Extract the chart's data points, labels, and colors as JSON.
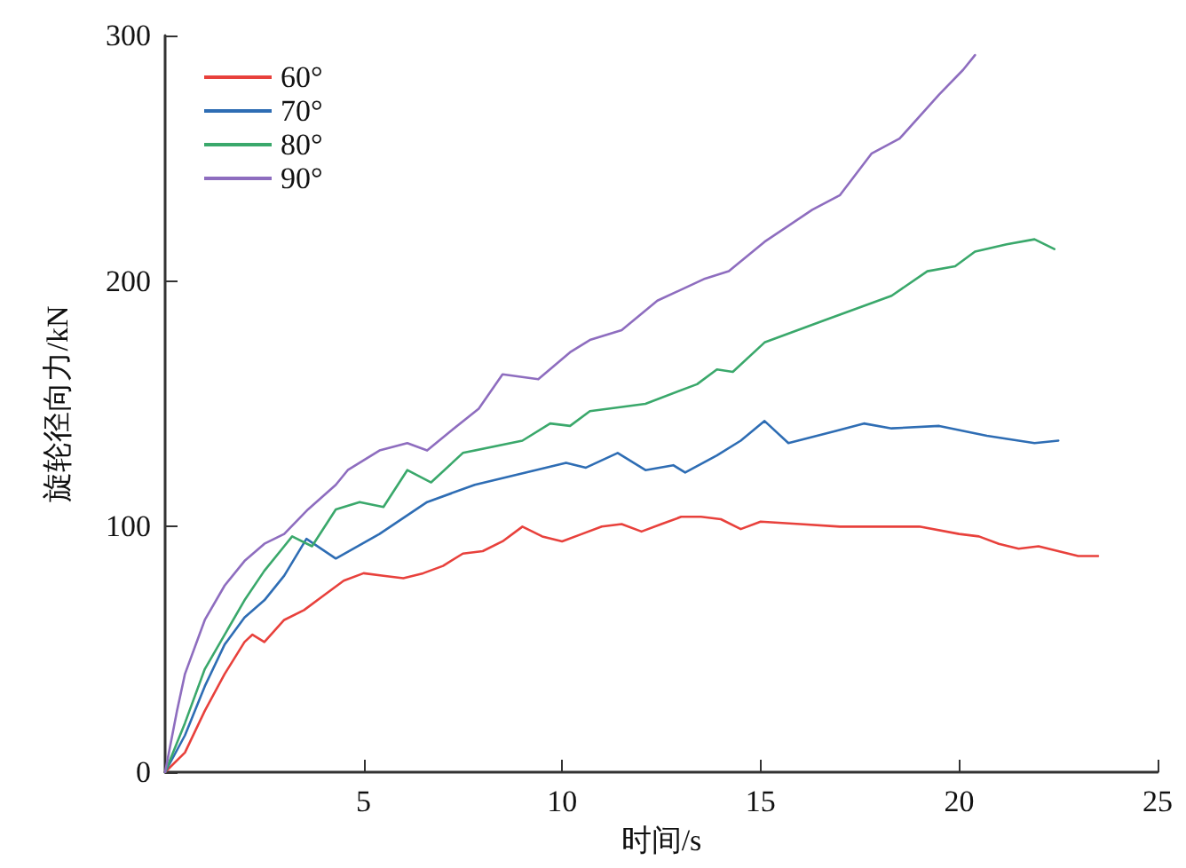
{
  "chart_data": {
    "type": "line",
    "xlabel": "时间/s",
    "ylabel": "旋轮径向力/kN",
    "xlim": [
      0,
      25
    ],
    "ylim": [
      0,
      300
    ],
    "xticks": [
      5,
      10,
      15,
      20,
      25
    ],
    "yticks": [
      0,
      100,
      200,
      300
    ],
    "grid": false,
    "legend": "top left",
    "marker": "none",
    "line_style": "solid",
    "series": [
      {
        "name": "60°",
        "color": "#e8413c",
        "x": [
          0,
          0.5,
          1,
          1.5,
          2,
          2.2,
          2.5,
          3,
          3.5,
          4,
          4.5,
          5,
          5.5,
          6,
          6.5,
          7,
          7.5,
          8,
          8.5,
          9,
          9.5,
          10,
          10.5,
          11,
          11.5,
          12,
          12.5,
          13,
          13.5,
          14,
          14.5,
          15,
          16,
          17,
          18,
          19,
          20,
          20.5,
          21,
          21.5,
          22,
          22.5,
          23,
          23.5
        ],
        "values": [
          0,
          8,
          25,
          40,
          53,
          56,
          53,
          62,
          66,
          72,
          78,
          81,
          80,
          79,
          81,
          84,
          89,
          90,
          94,
          100,
          96,
          94,
          97,
          100,
          101,
          98,
          101,
          104,
          104,
          103,
          99,
          102,
          101,
          100,
          100,
          100,
          97,
          96,
          93,
          91,
          92,
          90,
          88,
          88
        ]
      },
      {
        "name": "70°",
        "color": "#2e6db4",
        "x": [
          0,
          0.5,
          1,
          1.5,
          2,
          2.5,
          3,
          3.56,
          4.3,
          5.4,
          6.6,
          7.8,
          10.1,
          10.6,
          11.4,
          12.1,
          12.8,
          13.1,
          13.9,
          14.5,
          15.1,
          15.7,
          16.9,
          17.6,
          18.3,
          19.5,
          20.7,
          21.9,
          22.5
        ],
        "values": [
          0,
          15,
          35,
          52,
          63,
          70,
          80,
          95,
          87,
          97,
          110,
          117,
          126,
          124,
          130,
          123,
          125,
          122,
          129,
          135,
          143,
          134,
          139,
          142,
          140,
          141,
          137,
          134,
          135
        ]
      },
      {
        "name": "80°",
        "color": "#3aa86b",
        "x": [
          0,
          0.5,
          1,
          1.5,
          2,
          2.5,
          3,
          3.2,
          3.7,
          4.3,
          4.9,
          5.5,
          6.1,
          6.7,
          7.5,
          9,
          9.7,
          10.2,
          10.7,
          12.1,
          13.4,
          13.9,
          14.3,
          15.1,
          16.6,
          18.3,
          19.2,
          19.9,
          20.4,
          21.2,
          21.9,
          22.4
        ],
        "values": [
          0,
          20,
          42,
          56,
          70,
          82,
          92,
          96,
          92,
          107,
          110,
          108,
          123,
          118,
          130,
          135,
          142,
          141,
          147,
          150,
          158,
          164,
          163,
          175,
          184,
          194,
          204,
          206,
          212,
          215,
          217,
          213
        ]
      },
      {
        "name": "90°",
        "color": "#8e6dbf",
        "x": [
          0,
          0.3,
          0.5,
          1,
          1.5,
          2,
          2.5,
          3,
          3.6,
          4.3,
          4.6,
          5.4,
          6.1,
          6.6,
          7.2,
          7.9,
          8.5,
          9.4,
          10.2,
          10.7,
          11.5,
          12.4,
          13.6,
          14.2,
          15.1,
          16.3,
          17,
          17.8,
          18.5,
          19.5,
          20.1,
          20.4
        ],
        "values": [
          0,
          25,
          40,
          62,
          76,
          86,
          93,
          97,
          107,
          117,
          123,
          131,
          134,
          131,
          139,
          148,
          162,
          160,
          171,
          176,
          180,
          192,
          201,
          204,
          216,
          229,
          235,
          252,
          258,
          276,
          286,
          292
        ]
      }
    ]
  }
}
